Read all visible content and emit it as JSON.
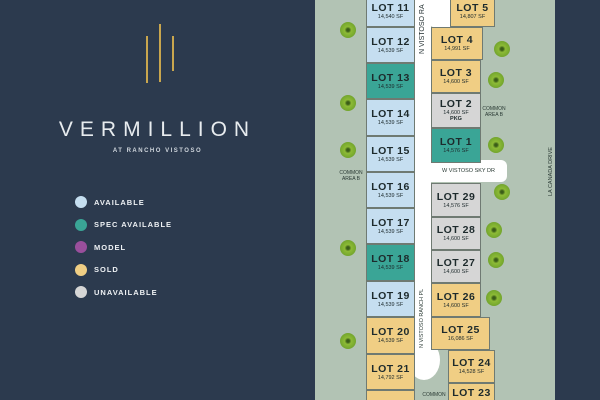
{
  "brand": {
    "name": "VERMILLION",
    "subtitle": "AT RANCHO VISTOSO"
  },
  "colors": {
    "available": "#c5def0",
    "spec_available": "#3aa596",
    "model": "#9a4f9c",
    "sold": "#f0ce84",
    "unavailable": "#d6d6d6"
  },
  "legend": [
    {
      "label": "AVAILABLE",
      "status": "available"
    },
    {
      "label": "SPEC AVAILABLE",
      "status": "spec_available"
    },
    {
      "label": "MODEL",
      "status": "model"
    },
    {
      "label": "SOLD",
      "status": "sold"
    },
    {
      "label": "UNAVAILABLE",
      "status": "unavailable"
    }
  ],
  "lots": [
    {
      "name": "LOT 11",
      "sf": "14,540 SF",
      "status": "available"
    },
    {
      "name": "LOT 12",
      "sf": "14,539 SF",
      "status": "available"
    },
    {
      "name": "LOT 13",
      "sf": "14,539 SF",
      "status": "spec_available"
    },
    {
      "name": "LOT 14",
      "sf": "14,539 SF",
      "status": "available"
    },
    {
      "name": "LOT 15",
      "sf": "14,539 SF",
      "status": "available"
    },
    {
      "name": "LOT 16",
      "sf": "14,539 SF",
      "status": "available"
    },
    {
      "name": "LOT 17",
      "sf": "14,539 SF",
      "status": "available"
    },
    {
      "name": "LOT 18",
      "sf": "14,539 SF",
      "status": "spec_available"
    },
    {
      "name": "LOT 19",
      "sf": "14,539 SF",
      "status": "available"
    },
    {
      "name": "LOT 20",
      "sf": "14,539 SF",
      "status": "sold"
    },
    {
      "name": "LOT 21",
      "sf": "14,792 SF",
      "status": "sold"
    },
    {
      "name": "",
      "sf": "",
      "status": "sold"
    },
    {
      "name": "LOT 5",
      "sf": "14,807 SF",
      "status": "sold"
    },
    {
      "name": "LOT 4",
      "sf": "14,991 SF",
      "status": "sold"
    },
    {
      "name": "LOT 3",
      "sf": "14,600 SF",
      "status": "sold"
    },
    {
      "name": "LOT 2",
      "sf": "14,600 SF",
      "extra": "PKG",
      "status": "unavailable"
    },
    {
      "name": "LOT 1",
      "sf": "14,576 SF",
      "status": "spec_available"
    },
    {
      "name": "LOT 29",
      "sf": "14,576 SF",
      "status": "unavailable"
    },
    {
      "name": "LOT 28",
      "sf": "14,600 SF",
      "status": "unavailable"
    },
    {
      "name": "LOT 27",
      "sf": "14,600 SF",
      "status": "unavailable"
    },
    {
      "name": "LOT 26",
      "sf": "14,600 SF",
      "status": "sold"
    },
    {
      "name": "LOT 25",
      "sf": "16,086 SF",
      "status": "sold"
    },
    {
      "name": "LOT 24",
      "sf": "14,528 SF",
      "status": "sold"
    },
    {
      "name": "LOT 23",
      "sf": "",
      "status": "sold"
    }
  ],
  "streets": {
    "n_vistoso_top": "N VISTOSO RA",
    "n_vistoso_ranch_pl": "N VISTOSO RANCH PL",
    "w_vistoso_sky": "W VISTOSO SKY DR",
    "la_canada": "LA CANADA DRIVE"
  },
  "areas": {
    "common_b_left": "COMMON AREA B",
    "common_b_right": "COMMON AREA B",
    "common_bottom": "COMMON"
  }
}
